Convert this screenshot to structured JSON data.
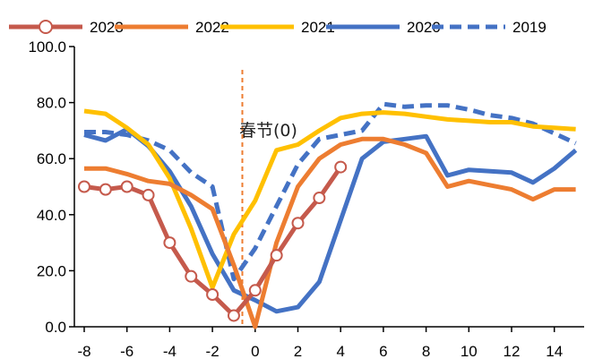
{
  "chart_data": {
    "type": "line",
    "title": "",
    "xlabel": "",
    "ylabel": "",
    "xlim": [
      -8,
      15
    ],
    "ylim": [
      0,
      100
    ],
    "x_ticks": [
      -8,
      -6,
      -4,
      -2,
      0,
      2,
      4,
      6,
      8,
      10,
      12,
      14
    ],
    "y_ticks": [
      "0.0",
      "20.0",
      "40.0",
      "60.0",
      "80.0",
      "100.0"
    ],
    "y_tick_values": [
      0,
      20,
      40,
      60,
      80,
      100
    ],
    "grid": false,
    "legend_position": "top",
    "annotation": {
      "text": "春节(0)",
      "x": -0.6
    },
    "series": [
      {
        "name": "2023",
        "color": "#C55A4C",
        "marker": "circle",
        "dash": "solid",
        "x": [
          -8,
          -7,
          -6,
          -5,
          -4,
          -3,
          -2,
          -1,
          0,
          1,
          2,
          3,
          4
        ],
        "y": [
          50,
          49,
          50,
          47,
          30,
          18,
          11.5,
          4,
          13,
          25.5,
          37,
          46,
          57
        ]
      },
      {
        "name": "2022",
        "color": "#ED7D31",
        "marker": "none",
        "dash": "solid",
        "x": [
          -8,
          -7,
          -6,
          -5,
          -4,
          -3,
          -2,
          -1,
          0,
          1,
          2,
          3,
          4,
          5,
          6,
          7,
          8,
          9,
          10,
          11,
          12,
          13,
          14,
          15
        ],
        "y": [
          56.5,
          56.5,
          54.5,
          52,
          51,
          47,
          42,
          22,
          0,
          30,
          50,
          60,
          65,
          67,
          67,
          65,
          62,
          50,
          52,
          50.5,
          49,
          45.5,
          49,
          49
        ]
      },
      {
        "name": "2021",
        "color": "#FFC000",
        "marker": "none",
        "dash": "solid",
        "x": [
          -8,
          -7,
          -6,
          -5,
          -4,
          -3,
          -2,
          -1,
          0,
          1,
          2,
          3,
          4,
          5,
          6,
          7,
          8,
          9,
          10,
          11,
          12,
          13,
          14,
          15
        ],
        "y": [
          77,
          76,
          71,
          65,
          53,
          35,
          14,
          33,
          45,
          63,
          65,
          70,
          74.5,
          76,
          76.5,
          76,
          75,
          74,
          73.5,
          73,
          73,
          71.5,
          71,
          70.5
        ]
      },
      {
        "name": "2020",
        "color": "#4472C4",
        "marker": "none",
        "dash": "solid",
        "x": [
          -8,
          -7,
          -6,
          -5,
          -4,
          -3,
          -2,
          -1,
          0,
          1,
          2,
          3,
          4,
          5,
          6,
          7,
          8,
          9,
          10,
          11,
          12,
          13,
          14,
          15
        ],
        "y": [
          68.5,
          66.5,
          70.5,
          64.5,
          55.5,
          43,
          26,
          13,
          9.5,
          5.5,
          7,
          16,
          38,
          60,
          66,
          67,
          68,
          54,
          56,
          55.5,
          55,
          51.5,
          56.5,
          63
        ]
      },
      {
        "name": "2019",
        "color": "#4472C4",
        "marker": "none",
        "dash": "dashed",
        "x": [
          -8,
          -7,
          -6,
          -5,
          -4,
          -3,
          -2,
          -1,
          0,
          1,
          2,
          3,
          4,
          5,
          6,
          7,
          8,
          9,
          10,
          11,
          12,
          13,
          14,
          15
        ],
        "y": [
          69.5,
          69.5,
          68.5,
          66.5,
          63,
          55,
          50,
          17,
          28,
          43,
          58,
          67,
          68.5,
          70,
          79.5,
          78.5,
          79,
          79,
          77.5,
          75.5,
          74.5,
          72.5,
          69,
          65.5
        ]
      }
    ]
  }
}
